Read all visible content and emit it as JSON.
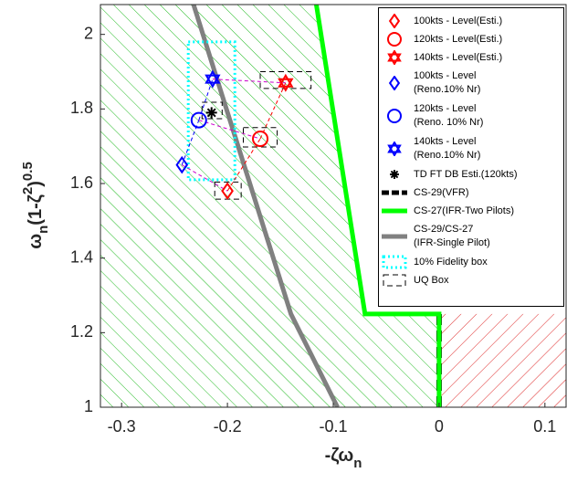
{
  "chart_data": {
    "type": "scatter",
    "xlabel": [
      "-ζω",
      "n"
    ],
    "ylabel": [
      "ω",
      "n",
      "(1-ζ",
      "2",
      ")",
      "0.5"
    ],
    "xlim": [
      -0.32,
      0.12
    ],
    "ylim": [
      1,
      2.08
    ],
    "xticks": [
      -0.3,
      -0.2,
      -0.1,
      0,
      0.1
    ],
    "yticks": [
      1,
      1.2,
      1.4,
      1.6,
      1.8,
      2
    ],
    "series": [
      {
        "name": "100kts - Level(Esti.)",
        "color": "#ff0000",
        "marker": "diamond",
        "x": [
          -0.2
        ],
        "y": [
          1.58
        ]
      },
      {
        "name": "120kts - Level(Esti.)",
        "color": "#ff0000",
        "marker": "circle",
        "x": [
          -0.169
        ],
        "y": [
          1.72
        ]
      },
      {
        "name": "140kts - Level(Esti.)",
        "color": "#ff0000",
        "marker": "hexagram",
        "x": [
          -0.145
        ],
        "y": [
          1.87
        ]
      },
      {
        "name": "100kts - Level\n(Reno.10% Nr)",
        "color": "#0000ff",
        "marker": "diamond",
        "x": [
          -0.243
        ],
        "y": [
          1.65
        ]
      },
      {
        "name": "120kts - Level\n(Reno. 10% Nr)",
        "color": "#0000ff",
        "marker": "circle",
        "x": [
          -0.227
        ],
        "y": [
          1.77
        ]
      },
      {
        "name": "140kts - Level\n(Reno.10% Nr)",
        "color": "#0000ff",
        "marker": "hexagram",
        "x": [
          -0.214
        ],
        "y": [
          1.88
        ]
      },
      {
        "name": "TD FT DB Esti.(120kts)",
        "color": "#000000",
        "marker": "asterisk",
        "x": [
          -0.215
        ],
        "y": [
          1.79
        ]
      },
      {
        "name": "CS-29(VFR)",
        "color": "#000000",
        "style": "dashed",
        "x": [
          0,
          0
        ],
        "y": [
          1,
          1.25
        ]
      },
      {
        "name": "CS-27(IFR-Two Pilots)",
        "color": "#00ff00",
        "style": "solid",
        "x": [
          -0.116,
          -0.07,
          0,
          0
        ],
        "y": [
          2.08,
          1.25,
          1.25,
          1
        ]
      },
      {
        "name": "CS-29/CS-27\n(IFR-Single Pilot)",
        "color": "#808080",
        "style": "solid",
        "x": [
          -0.232,
          -0.14,
          -0.096
        ],
        "y": [
          2.08,
          1.25,
          1
        ]
      },
      {
        "name": "10% Fidelity box",
        "color": "#00ffff",
        "style": "dotted",
        "boxes": [
          {
            "x": [
              -0.237,
              -0.193
            ],
            "y": [
              1.61,
              1.98
            ]
          }
        ]
      },
      {
        "name": "UQ Box",
        "color": "#000000",
        "style": "dashed",
        "boxes": [
          {
            "x": [
              -0.212,
              -0.187
            ],
            "y": [
              1.558,
              1.604
            ]
          },
          {
            "x": [
              -0.185,
              -0.153
            ],
            "y": [
              1.698,
              1.75
            ]
          },
          {
            "x": [
              -0.169,
              -0.121
            ],
            "y": [
              1.855,
              1.9
            ]
          },
          {
            "x": [
              -0.224,
              -0.205
            ],
            "y": [
              1.774,
              1.818
            ]
          }
        ]
      }
    ]
  }
}
